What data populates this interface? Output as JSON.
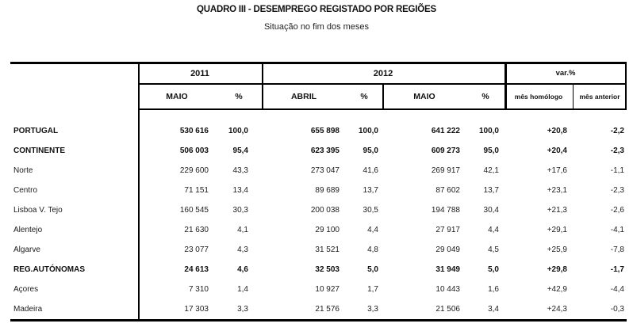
{
  "title": "QUADRO III - DESEMPREGO REGISTADO POR REGIÕES",
  "subtitle": "Situação no fim dos meses",
  "colors": {
    "background": "#ffffff",
    "text": "#1c1c1c",
    "rule": "#000000"
  },
  "table": {
    "groups": [
      {
        "label": "2011"
      },
      {
        "label": "2012"
      },
      {
        "label": "var.%"
      }
    ],
    "columns": [
      "MAIO",
      "%",
      "ABRIL",
      "%",
      "MAIO",
      "%",
      "mês homólogo",
      "mês anterior"
    ],
    "rows": [
      {
        "label": "PORTUGAL",
        "bold": true,
        "values": [
          "530 616",
          "100,0",
          "655 898",
          "100,0",
          "641 222",
          "100,0",
          "+20,8",
          "-2,2"
        ]
      },
      {
        "label": "CONTINENTE",
        "bold": true,
        "values": [
          "506 003",
          "95,4",
          "623 395",
          "95,0",
          "609 273",
          "95,0",
          "+20,4",
          "-2,3"
        ]
      },
      {
        "label": "Norte",
        "bold": false,
        "values": [
          "229 600",
          "43,3",
          "273 047",
          "41,6",
          "269 917",
          "42,1",
          "+17,6",
          "-1,1"
        ]
      },
      {
        "label": "Centro",
        "bold": false,
        "values": [
          "71 151",
          "13,4",
          "89 689",
          "13,7",
          "87 602",
          "13,7",
          "+23,1",
          "-2,3"
        ]
      },
      {
        "label": "Lisboa V. Tejo",
        "bold": false,
        "values": [
          "160 545",
          "30,3",
          "200 038",
          "30,5",
          "194 788",
          "30,4",
          "+21,3",
          "-2,6"
        ]
      },
      {
        "label": "Alentejo",
        "bold": false,
        "values": [
          "21 630",
          "4,1",
          "29 100",
          "4,4",
          "27 917",
          "4,4",
          "+29,1",
          "-4,1"
        ]
      },
      {
        "label": "Algarve",
        "bold": false,
        "values": [
          "23 077",
          "4,3",
          "31 521",
          "4,8",
          "29 049",
          "4,5",
          "+25,9",
          "-7,8"
        ]
      },
      {
        "label": "REG.AUTÓNOMAS",
        "bold": true,
        "values": [
          "24 613",
          "4,6",
          "32 503",
          "5,0",
          "31 949",
          "5,0",
          "+29,8",
          "-1,7"
        ]
      },
      {
        "label": "Açores",
        "bold": false,
        "values": [
          "7 310",
          "1,4",
          "10 927",
          "1,7",
          "10 443",
          "1,6",
          "+42,9",
          "-4,4"
        ]
      },
      {
        "label": "Madeira",
        "bold": false,
        "values": [
          "17 303",
          "3,3",
          "21 576",
          "3,3",
          "21 506",
          "3,4",
          "+24,3",
          "-0,3"
        ]
      }
    ]
  }
}
